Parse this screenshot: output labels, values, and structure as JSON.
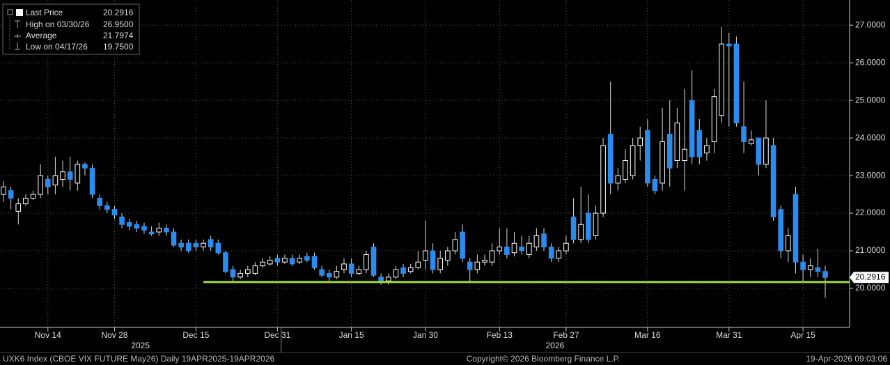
{
  "chart_data": {
    "type": "candlestick",
    "legend": [
      {
        "label": "Last Price",
        "value_label": "20.2916"
      },
      {
        "label": "High on 03/30/26",
        "value_label": "26.9500"
      },
      {
        "label": "Average",
        "value_label": "21.7974"
      },
      {
        "label": "Low on 04/17/26",
        "value_label": "19.7500"
      }
    ],
    "last_price": {
      "value": 20.2916,
      "label": "20.2916"
    },
    "reference_line": {
      "value": 20.17,
      "color": "#a4d83a",
      "start_category": 27
    },
    "categories": [
      null,
      null,
      null,
      null,
      null,
      null,
      "Nov 14",
      null,
      null,
      null,
      null,
      null,
      null,
      null,
      null,
      "Nov 28",
      null,
      null,
      null,
      null,
      null,
      null,
      null,
      null,
      null,
      null,
      "Dec 15",
      null,
      null,
      null,
      null,
      null,
      null,
      null,
      null,
      null,
      null,
      "Dec 31",
      null,
      null,
      null,
      null,
      null,
      null,
      null,
      null,
      null,
      "Jan 15",
      null,
      null,
      null,
      null,
      null,
      null,
      null,
      null,
      null,
      "Jan 30",
      null,
      null,
      null,
      null,
      null,
      null,
      null,
      null,
      null,
      "Feb 13",
      null,
      null,
      null,
      null,
      null,
      null,
      null,
      null,
      "Feb 27",
      null,
      null,
      null,
      null,
      null,
      null,
      null,
      null,
      null,
      null,
      "Mar 16",
      null,
      null,
      null,
      null,
      null,
      null,
      null,
      null,
      null,
      null,
      "Mar 31",
      null,
      null,
      null,
      null,
      null,
      null,
      null,
      null,
      null,
      "Apr 15",
      null,
      null,
      null
    ],
    "years": [
      {
        "label": "2025",
        "first": 0
      },
      {
        "label": "2026",
        "first": 38
      }
    ],
    "open": [
      22.5,
      22.6,
      22.05,
      22.25,
      22.4,
      22.5,
      22.9,
      22.75,
      22.9,
      23.1,
      22.8,
      23.3,
      23.2,
      22.4,
      22.2,
      22.1,
      21.9,
      21.75,
      21.7,
      21.65,
      21.5,
      21.5,
      21.6,
      21.5,
      21.2,
      21.2,
      21.2,
      21.1,
      21.3,
      21.2,
      20.95,
      20.5,
      20.3,
      20.4,
      20.4,
      20.6,
      20.65,
      20.8,
      20.7,
      20.8,
      20.7,
      20.85,
      20.85,
      20.5,
      20.4,
      20.3,
      20.5,
      20.65,
      20.4,
      20.5,
      21.1,
      20.3,
      20.2,
      20.3,
      20.55,
      20.45,
      20.55,
      20.75,
      21.0,
      20.5,
      20.75,
      21.0,
      21.5,
      20.7,
      20.5,
      20.7,
      20.7,
      21.0,
      21.1,
      20.95,
      21.1,
      20.9,
      21.1,
      21.45,
      21.1,
      20.8,
      21.0,
      21.9,
      21.3,
      22.0,
      21.4,
      22.0,
      24.1,
      22.8,
      22.9,
      23.0,
      23.8,
      24.2,
      22.9,
      22.8,
      24.1,
      23.4,
      23.4,
      25.0,
      24.2,
      23.6,
      23.9,
      24.6,
      26.5,
      26.5,
      24.3,
      23.85,
      24.0,
      23.3,
      23.8,
      22.1,
      21.0,
      22.5,
      20.7,
      20.5,
      20.55,
      20.45
    ],
    "high": [
      22.85,
      22.7,
      22.4,
      22.5,
      22.6,
      23.3,
      23.0,
      23.5,
      23.4,
      23.5,
      23.4,
      23.35,
      23.3,
      22.5,
      22.3,
      22.2,
      22.0,
      21.85,
      21.8,
      21.75,
      21.65,
      21.75,
      21.7,
      21.6,
      21.3,
      21.3,
      21.3,
      21.3,
      21.4,
      21.3,
      21.0,
      20.6,
      20.5,
      20.6,
      20.7,
      20.8,
      20.85,
      20.9,
      20.9,
      20.9,
      20.9,
      20.95,
      20.95,
      20.6,
      20.5,
      20.6,
      20.8,
      20.8,
      20.6,
      21.0,
      21.2,
      20.4,
      20.4,
      20.6,
      20.65,
      20.65,
      21.0,
      21.8,
      21.2,
      21.0,
      21.1,
      21.5,
      21.7,
      20.8,
      20.9,
      20.9,
      21.2,
      21.6,
      21.6,
      21.5,
      21.4,
      21.4,
      21.6,
      21.6,
      21.2,
      21.1,
      21.4,
      22.4,
      22.7,
      22.5,
      22.2,
      24.0,
      25.5,
      23.2,
      23.7,
      24.0,
      24.3,
      24.5,
      23.0,
      24.8,
      25.0,
      24.8,
      25.3,
      25.8,
      24.5,
      24.0,
      25.3,
      26.95,
      26.8,
      26.7,
      25.5,
      24.2,
      24.0,
      25.0,
      24.0,
      22.2,
      21.6,
      22.7,
      20.9,
      20.8,
      21.05,
      20.6
    ],
    "low": [
      22.3,
      22.1,
      21.7,
      22.2,
      22.35,
      22.4,
      22.5,
      22.5,
      22.7,
      22.6,
      22.6,
      23.0,
      22.4,
      22.1,
      22.0,
      21.85,
      21.6,
      21.55,
      21.5,
      21.45,
      21.4,
      21.4,
      21.4,
      21.1,
      21.0,
      20.95,
      21.0,
      21.0,
      21.0,
      20.9,
      20.4,
      20.2,
      20.25,
      20.3,
      20.35,
      20.55,
      20.6,
      20.6,
      20.65,
      20.6,
      20.65,
      20.7,
      20.5,
      20.3,
      20.2,
      20.25,
      20.4,
      20.3,
      20.35,
      20.4,
      20.3,
      20.1,
      20.1,
      20.25,
      20.3,
      20.4,
      20.5,
      20.5,
      20.4,
      20.4,
      20.6,
      20.9,
      20.7,
      20.2,
      20.4,
      20.6,
      20.6,
      20.9,
      20.8,
      20.85,
      20.9,
      20.8,
      21.0,
      21.0,
      20.7,
      20.7,
      20.9,
      21.2,
      21.2,
      21.2,
      21.3,
      21.9,
      22.5,
      22.6,
      22.8,
      22.9,
      23.4,
      22.7,
      22.5,
      22.6,
      22.7,
      23.2,
      22.6,
      23.3,
      23.3,
      23.4,
      23.6,
      24.4,
      24.3,
      24.3,
      23.6,
      23.8,
      23.0,
      23.2,
      21.8,
      20.8,
      20.7,
      20.4,
      20.2,
      20.3,
      20.3,
      19.75
    ],
    "close": [
      22.7,
      22.4,
      22.25,
      22.4,
      22.5,
      23.0,
      22.7,
      23.0,
      23.1,
      22.9,
      23.3,
      23.2,
      22.5,
      22.2,
      22.1,
      21.95,
      21.7,
      21.65,
      21.6,
      21.55,
      21.45,
      21.6,
      21.5,
      21.15,
      21.1,
      21.0,
      21.1,
      21.2,
      21.1,
      20.95,
      20.45,
      20.3,
      20.4,
      20.5,
      20.6,
      20.7,
      20.75,
      20.7,
      20.8,
      20.65,
      20.8,
      20.75,
      20.55,
      20.35,
      20.3,
      20.45,
      20.65,
      20.4,
      20.5,
      20.9,
      20.35,
      20.2,
      20.3,
      20.5,
      20.4,
      20.55,
      20.7,
      21.0,
      20.5,
      20.8,
      21.0,
      21.3,
      20.8,
      20.5,
      20.7,
      20.75,
      21.0,
      21.1,
      20.9,
      21.2,
      21.0,
      21.2,
      21.4,
      21.1,
      20.8,
      21.0,
      21.2,
      21.3,
      21.7,
      21.3,
      22.0,
      23.8,
      22.8,
      23.0,
      23.4,
      23.8,
      24.0,
      22.8,
      22.6,
      23.9,
      23.2,
      24.4,
      23.7,
      23.5,
      23.5,
      23.8,
      25.1,
      26.5,
      26.45,
      24.4,
      23.9,
      23.95,
      23.3,
      24.0,
      21.9,
      21.0,
      21.4,
      20.7,
      20.5,
      20.6,
      20.45,
      20.2916
    ],
    "up_color": "#ffffff",
    "down_color": "#2b8cf0",
    "ylim": [
      19.0,
      27.67
    ],
    "yticks": [
      {
        "value": 20,
        "label": "20.0000"
      },
      {
        "value": 21,
        "label": "21.0000"
      },
      {
        "value": 22,
        "label": "22.0000"
      },
      {
        "value": 23,
        "label": "23.0000"
      },
      {
        "value": 24,
        "label": "24.0000"
      },
      {
        "value": 25,
        "label": "25.0000"
      },
      {
        "value": 26,
        "label": "26.0000"
      },
      {
        "value": 27,
        "label": "27.0000"
      }
    ],
    "grid": true,
    "footer": {
      "left": "UXK6 Index (CBOE VIX FUTURE  May26) Daily 19APR2025-19APR2026",
      "center": "Copyright© 2026 Bloomberg Finance L.P.",
      "right": "19-Apr-2026 09:03:06"
    }
  }
}
